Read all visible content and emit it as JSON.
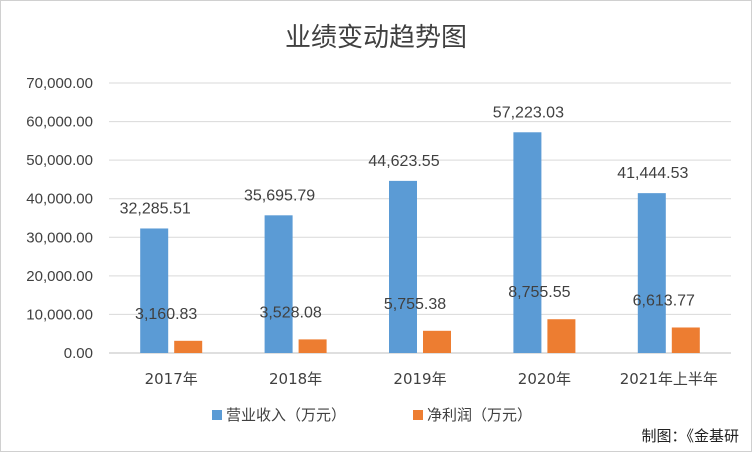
{
  "chart_data": {
    "type": "bar",
    "title": "业绩变动趋势图",
    "categories": [
      "2017年",
      "2018年",
      "2019年",
      "2020年",
      "2021年上半年"
    ],
    "series": [
      {
        "name": "营业收入（万元）",
        "color": "#5B9BD5",
        "values": [
          32285.51,
          35695.79,
          44623.55,
          57223.03,
          41444.53
        ],
        "labels": [
          "32,285.51",
          "35,695.79",
          "44,623.55",
          "57,223.03",
          "41,444.53"
        ]
      },
      {
        "name": "净利润（万元）",
        "color": "#ED7D31",
        "values": [
          3160.83,
          3528.08,
          5755.38,
          8755.55,
          6613.77
        ],
        "labels": [
          "3,160.83",
          "3,528.08",
          "5,755.38",
          "8,755.55",
          "6,613.77"
        ]
      }
    ],
    "ylim": [
      0,
      70000
    ],
    "yticks": [
      0,
      10000,
      20000,
      30000,
      40000,
      50000,
      60000,
      70000
    ],
    "ytick_labels": [
      "0.00",
      "10,000.00",
      "20,000.00",
      "30,000.00",
      "40,000.00",
      "50,000.00",
      "60,000.00",
      "70,000.00"
    ],
    "grid": true,
    "legend_position": "bottom",
    "xlabel": "",
    "ylabel": ""
  },
  "credit": "制图：《金基研"
}
